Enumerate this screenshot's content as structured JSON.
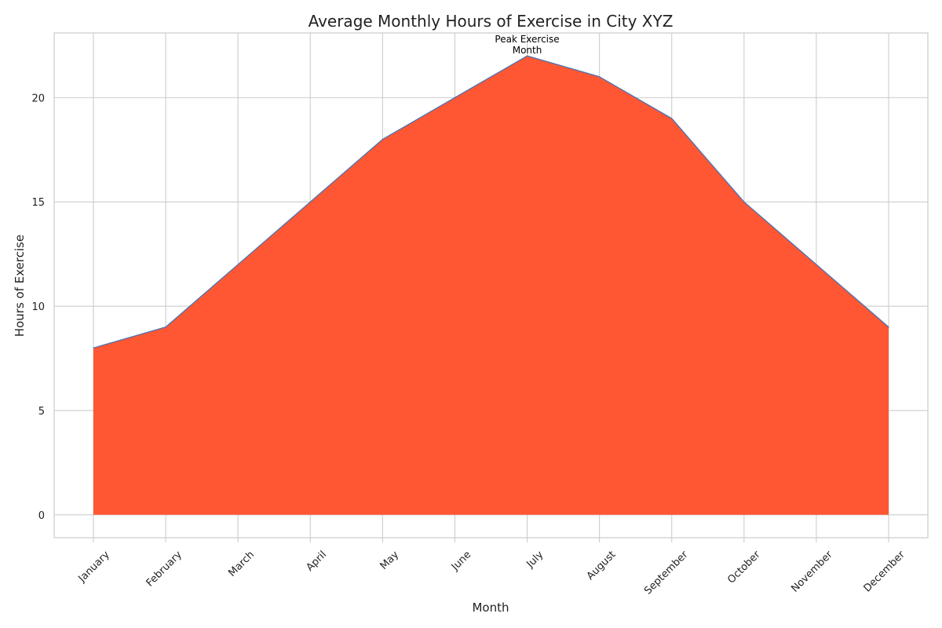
{
  "chart_data": {
    "type": "area",
    "title": "Average Monthly Hours of Exercise in City XYZ",
    "xlabel": "Month",
    "ylabel": "Hours of Exercise",
    "categories": [
      "January",
      "February",
      "March",
      "April",
      "May",
      "June",
      "July",
      "August",
      "September",
      "October",
      "November",
      "December"
    ],
    "values": [
      8,
      9,
      12,
      15,
      18,
      20,
      22,
      21,
      19,
      15,
      12,
      9
    ],
    "ylim": [
      -1.1,
      23.1
    ],
    "yticks": [
      0,
      5,
      10,
      15,
      20
    ],
    "grid": true,
    "fill_color": "#ff5733",
    "line_color": "#4c72b0",
    "annotation": {
      "category": "July",
      "value": 22,
      "lines": [
        "Peak Exercise",
        "Month"
      ]
    }
  }
}
